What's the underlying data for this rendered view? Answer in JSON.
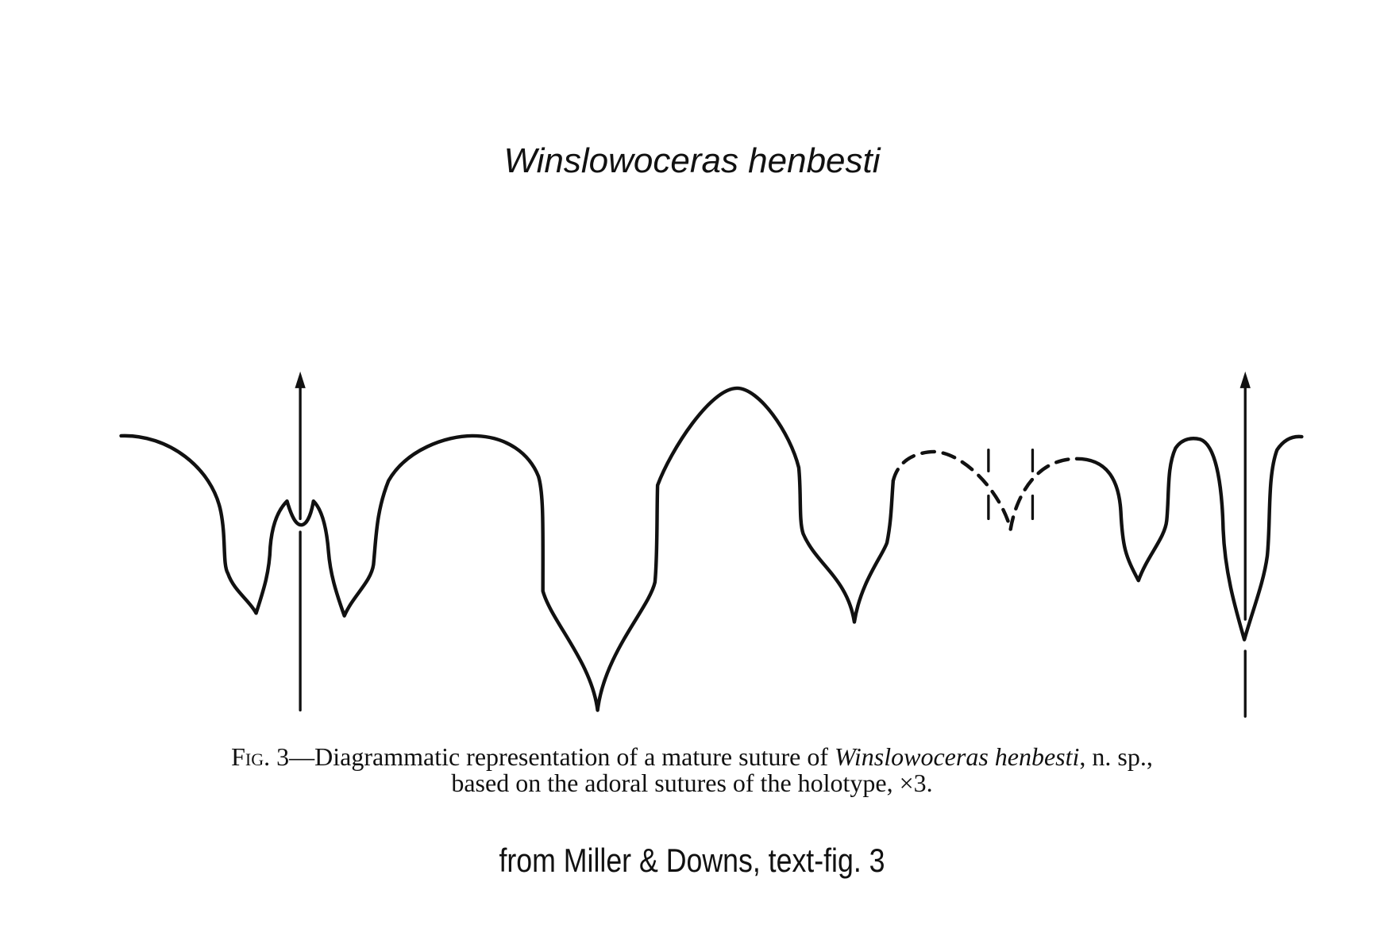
{
  "title": "Winslowoceras henbesti",
  "caption": {
    "fig_label": "Fig. 3",
    "line1_text": "—Diagrammatic representation of a mature suture of ",
    "species": "Winslowoceras henbesti",
    "line1_end": ", n. sp.,",
    "line2": "based on the adoral sutures of the holotype, ×3."
  },
  "source": "from  Miller & Downs, text-fig. 3",
  "colors": {
    "line": "#111111",
    "background": "#ffffff"
  }
}
